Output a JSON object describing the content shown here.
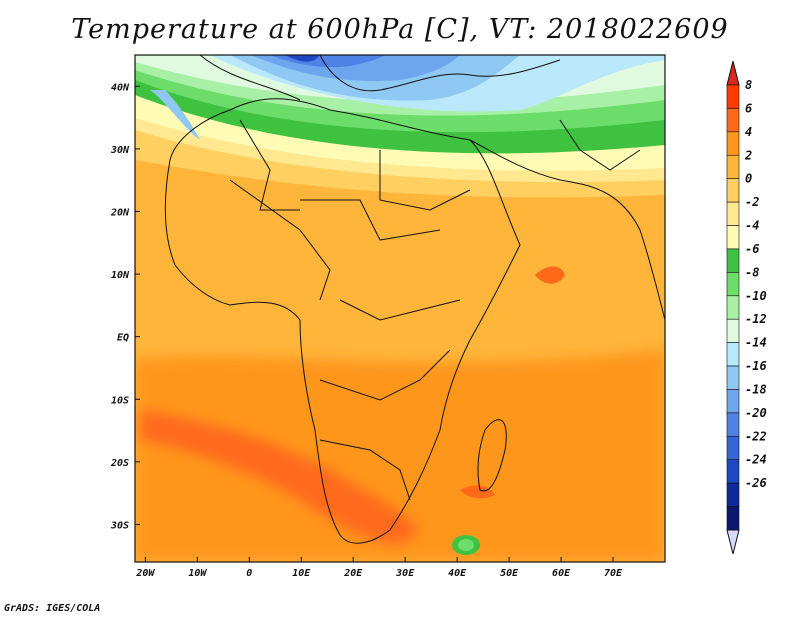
{
  "title": "Temperature at 600hPa [C], VT: 2018022609",
  "credit": "GrADS: IGES/COLA",
  "map": {
    "lon_range": [
      -22,
      80
    ],
    "lat_range": [
      -36,
      45
    ],
    "x_ticks": [
      "20W",
      "10W",
      "0",
      "10E",
      "20E",
      "30E",
      "40E",
      "50E",
      "60E",
      "70E"
    ],
    "y_ticks": [
      "40N",
      "30N",
      "20N",
      "10N",
      "EQ",
      "10S",
      "20S",
      "30S"
    ]
  },
  "colorbar": {
    "labels": [
      "8",
      "6",
      "4",
      "2",
      "0",
      "-2",
      "-4",
      "-6",
      "-8",
      "-10",
      "-12",
      "-14",
      "-16",
      "-18",
      "-20",
      "-22",
      "-24",
      "-26"
    ],
    "colors": [
      "#ff3a00",
      "#ff6a1a",
      "#ff961e",
      "#ffb43a",
      "#ffd060",
      "#ffe890",
      "#fdfbb4",
      "#3ec240",
      "#6cdc6a",
      "#a8f0a6",
      "#dffadf",
      "#b9e8fb",
      "#90c8f4",
      "#6ea6ee",
      "#4f82e4",
      "#3566d8",
      "#1e48c2",
      "#0c2a9c",
      "#0b1870"
    ],
    "top_arrow_color": "#d8281e",
    "bottom_arrow_color": "#d8d8fb"
  }
}
